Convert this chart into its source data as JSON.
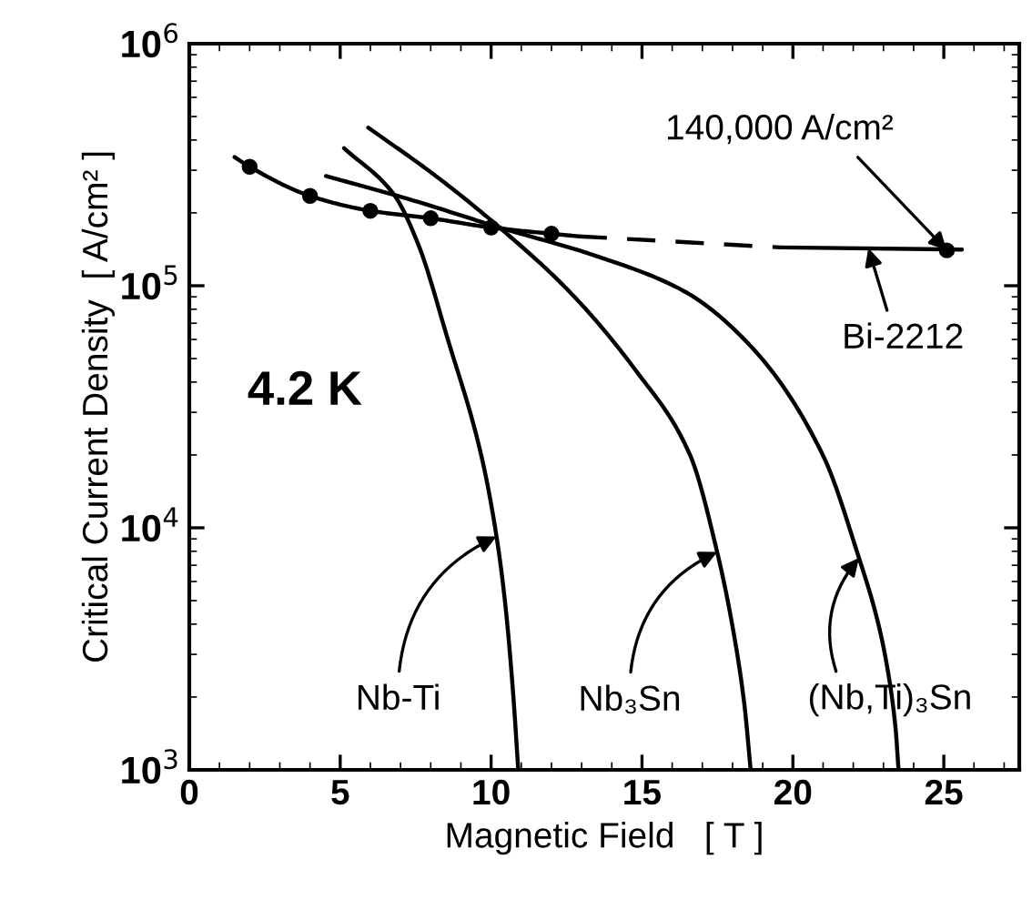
{
  "chart_data": {
    "type": "line",
    "xlabel": "Magnetic Field   [ T ]",
    "ylabel": "Critical Current Density  [ A/cm² ]",
    "log": "y",
    "grid": false,
    "legend": false,
    "xlim": [
      0,
      27.5
    ],
    "xticks": [
      0,
      5,
      10,
      15,
      20,
      25
    ],
    "ylim": [
      1000,
      1000000
    ],
    "yticks": [
      {
        "value": 1000,
        "label": "10$^{3}$"
      },
      {
        "value": 10000,
        "label": "10$^{4}$"
      },
      {
        "value": 100000,
        "label": "10$^{5}$"
      },
      {
        "value": 1000000,
        "label": "10$^{6}$"
      }
    ],
    "series": [
      {
        "color": "#000000",
        "line_style": "solid",
        "marker": "none",
        "x": [
          1.5,
          2,
          4,
          6,
          8,
          10,
          12,
          12.9
        ],
        "values": [
          340000,
          310000,
          235000,
          204000,
          190000,
          174000,
          164000,
          160000
        ]
      },
      {
        "color": "#000000",
        "line_style": "dashed",
        "marker": "none",
        "x": [
          12.9,
          19.6
        ],
        "values": [
          160000,
          144000
        ]
      },
      {
        "color": "#000000",
        "line_style": "solid",
        "marker": "none",
        "x": [
          19.6,
          25.6
        ],
        "values": [
          144000,
          141000
        ]
      },
      {
        "type": "scatter",
        "color": "#000000",
        "marker": "circle",
        "x": [
          2,
          4,
          6,
          8,
          10,
          12,
          25.1
        ],
        "values": [
          310000,
          235000,
          204000,
          190000,
          174000,
          164000,
          140000
        ]
      },
      {
        "color": "#000000",
        "line_style": "solid",
        "marker": "none",
        "x": [
          5.13,
          6.77,
          7.57,
          8.57,
          9.67,
          10.18,
          10.48,
          10.74,
          10.9
        ],
        "values": [
          370000,
          239000,
          150000,
          59800,
          20000,
          9200,
          4700,
          1990,
          1000
        ]
      },
      {
        "color": "#000000",
        "line_style": "solid",
        "marker": "none",
        "x": [
          5.93,
          8.17,
          10.28,
          12.58,
          14.78,
          16.59,
          17.49,
          17.99,
          18.39,
          18.6
        ],
        "values": [
          450000,
          284000,
          174000,
          95000,
          44900,
          20000,
          7940,
          3970,
          1870,
          1000
        ]
      },
      {
        "color": "#000000",
        "line_style": "solid",
        "marker": "none",
        "x": [
          4.53,
          7.37,
          10.28,
          13.38,
          16.39,
          18.59,
          20.99,
          22.19,
          22.79,
          23.09,
          23.4,
          23.5
        ],
        "values": [
          284000,
          226000,
          174000,
          134000,
          95000,
          56500,
          20000,
          7500,
          4200,
          2810,
          1490,
          1000
        ]
      }
    ],
    "annotations": [
      {
        "text": "Nb-Ti",
        "x": 10.18,
        "y": 9200
      },
      {
        "text": "Nb₃Sn",
        "x": 17.49,
        "y": 7940
      },
      {
        "text": "(Nb,Ti)₃Sn",
        "x": 22.19,
        "y": 7500
      },
      {
        "text": "Bi-2212",
        "x": 22.5,
        "y": 143000
      },
      {
        "text": "140,000 A/cm²",
        "x": 25.1,
        "y": 140000
      },
      "4.2 K"
    ]
  }
}
